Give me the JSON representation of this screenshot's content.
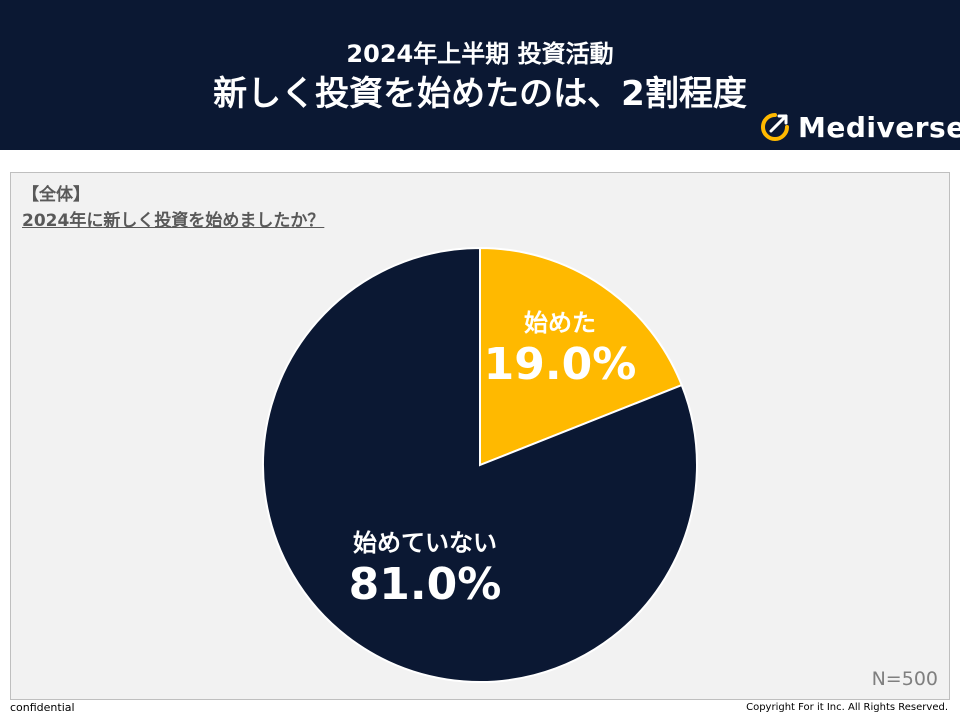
{
  "header": {
    "subtitle": "2024年上半期 投資活動",
    "title": "新しく投資を始めたのは、2割程度",
    "brand": "Mediverse",
    "brand_icon": "mediverse-logo-icon"
  },
  "panel": {
    "segment": "【全体】",
    "question": "2024年に新しく投資を始めましたか？",
    "n_label": "N=500"
  },
  "colors": {
    "header_bg": "#0b1833",
    "slice_started": "#ffb900",
    "slice_not_started": "#0b1833"
  },
  "chart_data": {
    "type": "pie",
    "categories": [
      "始めた",
      "始めていない"
    ],
    "values": [
      19.0,
      81.0
    ],
    "value_labels": [
      "19.0%",
      "81.0%"
    ],
    "colors": [
      "#ffb900",
      "#0b1833"
    ]
  },
  "footer": {
    "left": "confidential",
    "right": "Copyright For it Inc. All Rights Reserved."
  }
}
